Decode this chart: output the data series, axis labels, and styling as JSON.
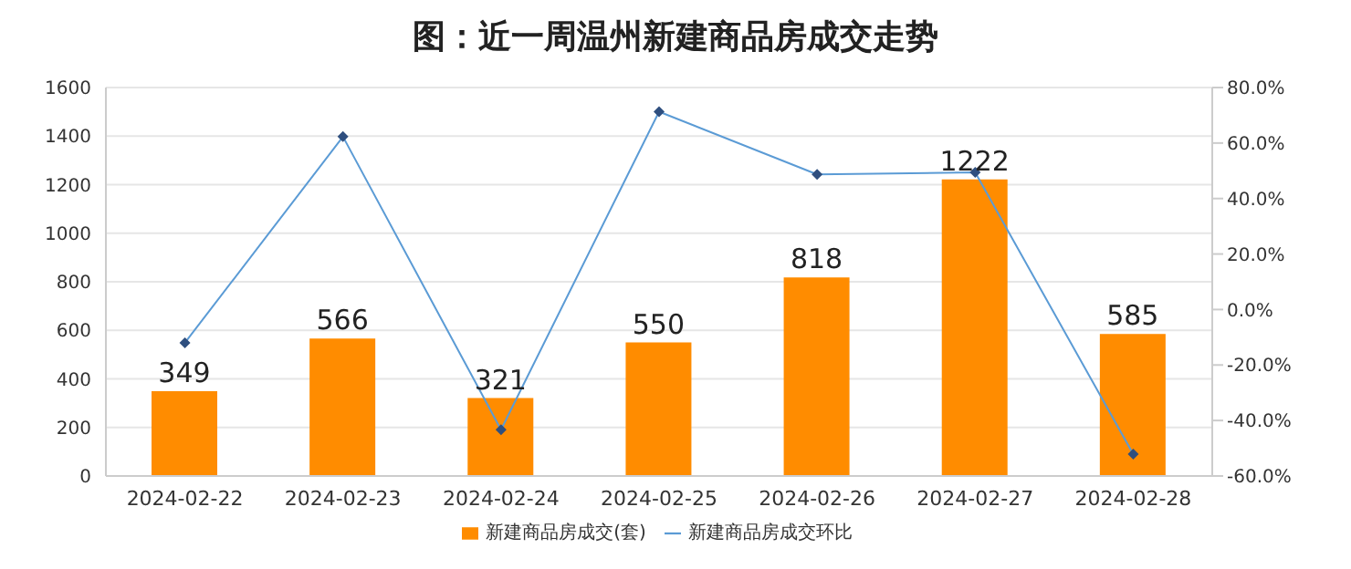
{
  "chart_data": {
    "type": "bar",
    "title": "图：近一周温州新建商品房成交走势",
    "categories": [
      "2024-02-22",
      "2024-02-23",
      "2024-02-24",
      "2024-02-25",
      "2024-02-26",
      "2024-02-27",
      "2024-02-28"
    ],
    "series": [
      {
        "name": "新建商品房成交(套)",
        "color": "#ff8c00",
        "values": [
          349,
          566,
          321,
          550,
          818,
          1222,
          585
        ],
        "value_labels": [
          "349",
          "566",
          "321",
          "550",
          "818",
          "1222",
          "585"
        ]
      },
      {
        "name": "新建商品房成交环比",
        "type": "line",
        "axis": "y2",
        "color": "#5b9bd5",
        "marker": "diamond",
        "values": [
          -12.0,
          62.3,
          -43.3,
          71.3,
          48.7,
          49.4,
          -52.1
        ]
      }
    ],
    "ylim": [
      0,
      1600
    ],
    "yticks": [
      0,
      200,
      400,
      600,
      800,
      1000,
      1200,
      1400,
      1600
    ],
    "y2lim": [
      -60,
      80
    ],
    "y2ticks": [
      {
        "value": -60,
        "label": "-60.0%"
      },
      {
        "value": -40,
        "label": "-40.0%"
      },
      {
        "value": -20,
        "label": "-20.0%"
      },
      {
        "value": 0,
        "label": "0.0%"
      },
      {
        "value": 20,
        "label": "20.0%"
      },
      {
        "value": 40,
        "label": "40.0%"
      },
      {
        "value": 60,
        "label": "60.0%"
      },
      {
        "value": 80,
        "label": "80.0%"
      }
    ],
    "grid": "y",
    "legend": "bottom"
  }
}
